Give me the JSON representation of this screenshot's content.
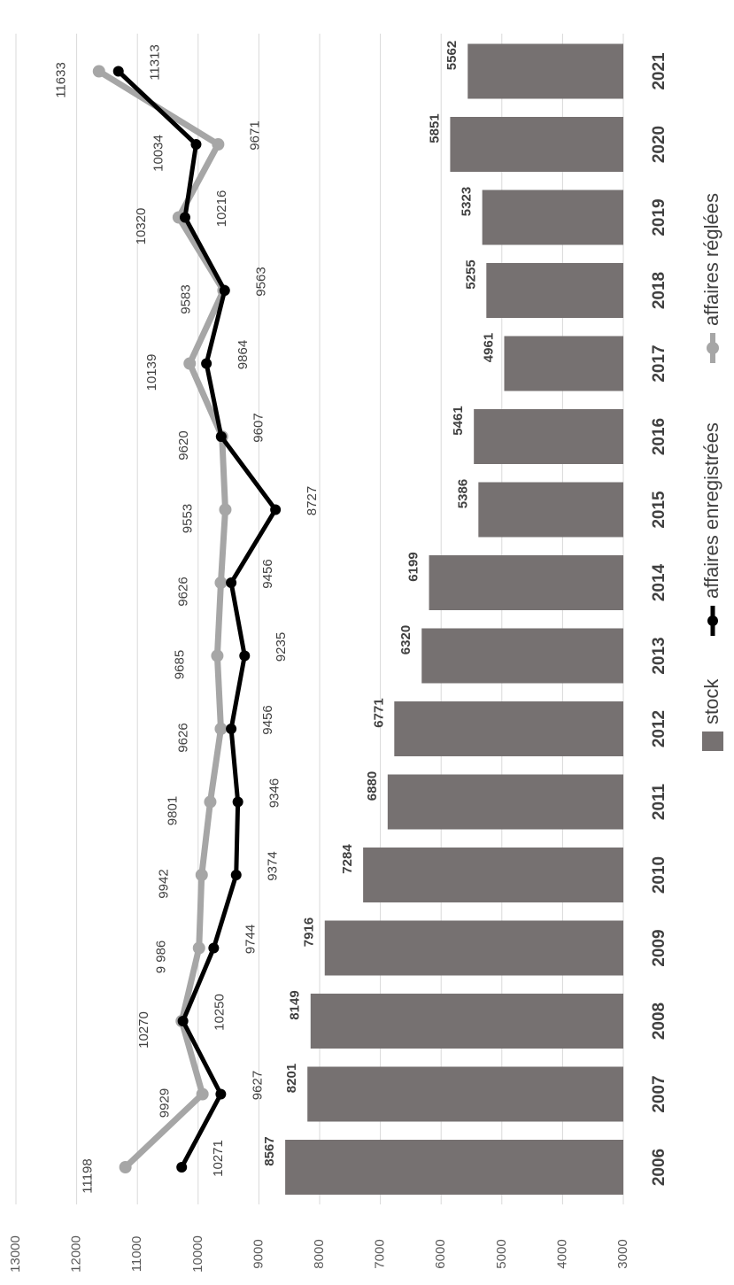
{
  "chart_data": {
    "type": "bar",
    "orientation": "rotated",
    "categories": [
      "2006",
      "2007",
      "2008",
      "2009",
      "2010",
      "2011",
      "2012",
      "2013",
      "2014",
      "2015",
      "2016",
      "2017",
      "2018",
      "2019",
      "2020",
      "2021"
    ],
    "ylim": [
      3000,
      13000
    ],
    "yticks": [
      "3000",
      "4000",
      "5000",
      "6000",
      "7000",
      "8000",
      "9000",
      "10000",
      "11000",
      "12000",
      "13000"
    ],
    "grid": true,
    "legend_position": "bottom",
    "series": [
      {
        "name": "stock",
        "kind": "bar",
        "color": "#767171",
        "values": [
          8567,
          8201,
          8149,
          7916,
          7284,
          6880,
          6771,
          6320,
          6199,
          5386,
          5461,
          4961,
          5255,
          5323,
          5851,
          5562
        ],
        "labels": [
          "8567",
          "8201",
          "8149",
          "7916",
          "7284",
          "6880",
          "6771",
          "6320",
          "6199",
          "5386",
          "5461",
          "4961",
          "5255",
          "5323",
          "5851",
          "5562"
        ]
      },
      {
        "name": "affaires enregistrées",
        "kind": "line",
        "color": "#000000",
        "values": [
          10271,
          9627,
          10250,
          9744,
          9374,
          9346,
          9456,
          9235,
          9456,
          8727,
          9620,
          9864,
          9563,
          10216,
          10034,
          11313
        ],
        "labels": [
          "10271",
          "9627",
          "10250",
          "9744",
          "9374",
          "9346",
          "9456",
          "9235",
          "9456",
          "8727",
          "9620",
          "9864",
          "9563",
          "10216",
          "10034",
          "11313"
        ]
      },
      {
        "name": "affaires réglées",
        "kind": "line",
        "color": "#a6a6a6",
        "values": [
          11198,
          9929,
          10270,
          9986,
          9942,
          9801,
          9626,
          9685,
          9626,
          9553,
          9607,
          10139,
          9583,
          10320,
          9671,
          11633
        ],
        "labels": [
          "11198",
          "9929",
          "10270",
          "9 986",
          "9942",
          "9801",
          "9626",
          "9685",
          "9626",
          "9553",
          "9607",
          "10139",
          "9583",
          "10320",
          "9671",
          "11633"
        ]
      }
    ]
  }
}
